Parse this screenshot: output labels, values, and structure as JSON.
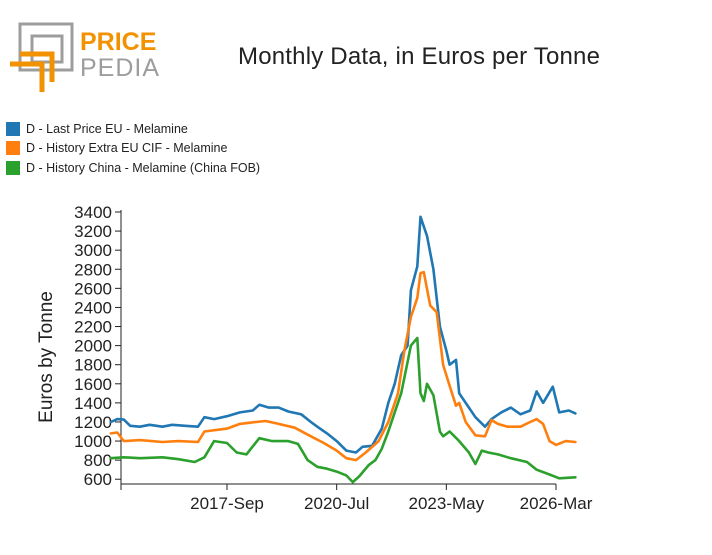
{
  "brand": {
    "line1": "PRICE",
    "line2": "PEDIA",
    "colors": {
      "orange": "#f39200",
      "gray": "#9d9d9c"
    }
  },
  "chart_data": {
    "type": "line",
    "title": "Monthly Data, in Euros per Tonne",
    "ylabel": "Euros by Tonne",
    "xlabel": "",
    "x_ticks": [
      "2017-Sep",
      "2020-Jul",
      "2023-May",
      "2026-Mar"
    ],
    "y_ticks": [
      600,
      800,
      1000,
      1200,
      1400,
      1600,
      1800,
      2000,
      2200,
      2400,
      2600,
      2800,
      3000,
      3200,
      3400
    ],
    "ylim": [
      550,
      3400
    ],
    "legend_position": "top-left",
    "grid": false,
    "series": [
      {
        "name": "D - Last Price EU - Melamine",
        "color": "#1f77b4",
        "points": [
          [
            "2014-09",
            1200
          ],
          [
            "2014-11",
            1230
          ],
          [
            "2015-01",
            1225
          ],
          [
            "2015-03",
            1160
          ],
          [
            "2015-06",
            1150
          ],
          [
            "2015-09",
            1170
          ],
          [
            "2016-01",
            1150
          ],
          [
            "2016-04",
            1170
          ],
          [
            "2016-08",
            1160
          ],
          [
            "2016-12",
            1150
          ],
          [
            "2017-02",
            1250
          ],
          [
            "2017-05",
            1230
          ],
          [
            "2017-09",
            1260
          ],
          [
            "2018-01",
            1300
          ],
          [
            "2018-05",
            1320
          ],
          [
            "2018-07",
            1380
          ],
          [
            "2018-10",
            1350
          ],
          [
            "2019-01",
            1350
          ],
          [
            "2019-04",
            1310
          ],
          [
            "2019-08",
            1280
          ],
          [
            "2019-11",
            1200
          ],
          [
            "2020-01",
            1150
          ],
          [
            "2020-04",
            1080
          ],
          [
            "2020-07",
            1000
          ],
          [
            "2020-10",
            900
          ],
          [
            "2021-01",
            880
          ],
          [
            "2021-03",
            940
          ],
          [
            "2021-06",
            950
          ],
          [
            "2021-09",
            1130
          ],
          [
            "2021-11",
            1400
          ],
          [
            "2022-01",
            1600
          ],
          [
            "2022-03",
            1900
          ],
          [
            "2022-05",
            2000
          ],
          [
            "2022-06",
            2580
          ],
          [
            "2022-08",
            2830
          ],
          [
            "2022-09",
            3350
          ],
          [
            "2022-11",
            3150
          ],
          [
            "2023-01",
            2800
          ],
          [
            "2023-03",
            2200
          ],
          [
            "2023-05",
            1950
          ],
          [
            "2023-06",
            1800
          ],
          [
            "2023-08",
            1850
          ],
          [
            "2023-09",
            1500
          ],
          [
            "2023-11",
            1400
          ],
          [
            "2024-02",
            1250
          ],
          [
            "2024-05",
            1150
          ],
          [
            "2024-07",
            1230
          ],
          [
            "2024-10",
            1300
          ],
          [
            "2025-01",
            1350
          ],
          [
            "2025-04",
            1280
          ],
          [
            "2025-07",
            1320
          ],
          [
            "2025-09",
            1520
          ],
          [
            "2025-11",
            1400
          ],
          [
            "2026-02",
            1570
          ],
          [
            "2026-04",
            1300
          ],
          [
            "2026-07",
            1320
          ],
          [
            "2026-09",
            1290
          ]
        ]
      },
      {
        "name": "D - History Extra EU CIF - Melamine",
        "color": "#ff7f0e",
        "points": [
          [
            "2014-09",
            1080
          ],
          [
            "2014-11",
            1090
          ],
          [
            "2015-01",
            1000
          ],
          [
            "2015-06",
            1010
          ],
          [
            "2016-01",
            990
          ],
          [
            "2016-06",
            1000
          ],
          [
            "2016-12",
            990
          ],
          [
            "2017-02",
            1100
          ],
          [
            "2017-09",
            1130
          ],
          [
            "2018-01",
            1180
          ],
          [
            "2018-06",
            1200
          ],
          [
            "2018-09",
            1210
          ],
          [
            "2019-01",
            1180
          ],
          [
            "2019-06",
            1140
          ],
          [
            "2019-11",
            1050
          ],
          [
            "2020-03",
            980
          ],
          [
            "2020-07",
            900
          ],
          [
            "2020-10",
            820
          ],
          [
            "2021-01",
            800
          ],
          [
            "2021-04",
            880
          ],
          [
            "2021-08",
            1000
          ],
          [
            "2021-11",
            1200
          ],
          [
            "2022-02",
            1500
          ],
          [
            "2022-04",
            1950
          ],
          [
            "2022-06",
            2300
          ],
          [
            "2022-08",
            2500
          ],
          [
            "2022-09",
            2760
          ],
          [
            "2022-10",
            2770
          ],
          [
            "2022-12",
            2420
          ],
          [
            "2023-02",
            2350
          ],
          [
            "2023-04",
            1800
          ],
          [
            "2023-06",
            1580
          ],
          [
            "2023-08",
            1370
          ],
          [
            "2023-09",
            1400
          ],
          [
            "2023-11",
            1200
          ],
          [
            "2024-02",
            1060
          ],
          [
            "2024-05",
            1050
          ],
          [
            "2024-07",
            1220
          ],
          [
            "2024-09",
            1180
          ],
          [
            "2024-12",
            1150
          ],
          [
            "2025-04",
            1150
          ],
          [
            "2025-07",
            1200
          ],
          [
            "2025-09",
            1230
          ],
          [
            "2025-11",
            1180
          ],
          [
            "2026-01",
            1000
          ],
          [
            "2026-03",
            960
          ],
          [
            "2026-06",
            1000
          ],
          [
            "2026-09",
            990
          ]
        ]
      },
      {
        "name": "D - History China - Melamine (China FOB)",
        "color": "#2ca02c",
        "points": [
          [
            "2014-09",
            820
          ],
          [
            "2015-01",
            830
          ],
          [
            "2015-06",
            820
          ],
          [
            "2016-01",
            830
          ],
          [
            "2016-06",
            810
          ],
          [
            "2016-11",
            780
          ],
          [
            "2017-02",
            830
          ],
          [
            "2017-05",
            1000
          ],
          [
            "2017-09",
            980
          ],
          [
            "2017-12",
            880
          ],
          [
            "2018-03",
            860
          ],
          [
            "2018-07",
            1030
          ],
          [
            "2018-11",
            1000
          ],
          [
            "2019-04",
            1000
          ],
          [
            "2019-07",
            970
          ],
          [
            "2019-10",
            800
          ],
          [
            "2020-01",
            730
          ],
          [
            "2020-04",
            710
          ],
          [
            "2020-07",
            680
          ],
          [
            "2020-10",
            640
          ],
          [
            "2020-12",
            570
          ],
          [
            "2021-02",
            630
          ],
          [
            "2021-05",
            750
          ],
          [
            "2021-07",
            800
          ],
          [
            "2021-09",
            920
          ],
          [
            "2021-11",
            1100
          ],
          [
            "2022-01",
            1300
          ],
          [
            "2022-03",
            1500
          ],
          [
            "2022-06",
            2000
          ],
          [
            "2022-08",
            2080
          ],
          [
            "2022-09",
            1500
          ],
          [
            "2022-10",
            1420
          ],
          [
            "2022-11",
            1600
          ],
          [
            "2023-01",
            1480
          ],
          [
            "2023-03",
            1100
          ],
          [
            "2023-04",
            1050
          ],
          [
            "2023-06",
            1100
          ],
          [
            "2023-09",
            1000
          ],
          [
            "2023-12",
            880
          ],
          [
            "2024-02",
            760
          ],
          [
            "2024-04",
            900
          ],
          [
            "2024-06",
            880
          ],
          [
            "2024-09",
            860
          ],
          [
            "2025-01",
            820
          ],
          [
            "2025-06",
            780
          ],
          [
            "2025-09",
            700
          ],
          [
            "2026-01",
            650
          ],
          [
            "2026-04",
            610
          ],
          [
            "2026-09",
            620
          ]
        ]
      }
    ]
  }
}
